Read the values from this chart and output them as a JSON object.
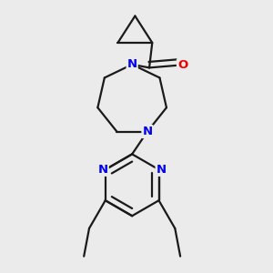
{
  "bg_color": "#ebebeb",
  "bond_color": "#1a1a1a",
  "N_color": "#0000ee",
  "O_color": "#ee0000",
  "bond_width": 1.6,
  "figsize": [
    3.0,
    3.0
  ],
  "dpi": 100,
  "xlim": [
    0.15,
    0.85
  ],
  "ylim": [
    0.05,
    0.97
  ]
}
